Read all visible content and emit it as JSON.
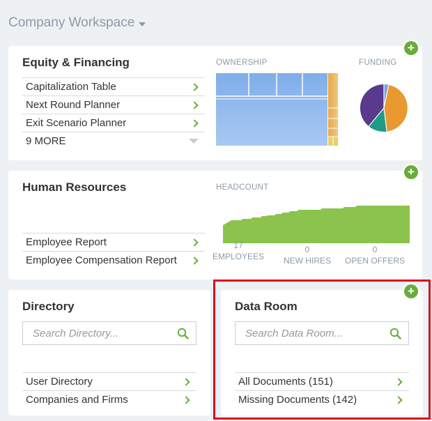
{
  "workspace": {
    "title": "Company Workspace"
  },
  "equity": {
    "title": "Equity & Financing",
    "items": [
      {
        "label": "Capitalization Table"
      },
      {
        "label": "Next Round Planner"
      },
      {
        "label": "Exit Scenario Planner"
      }
    ],
    "more_label": "9 MORE",
    "ownership_label": "OWNERSHIP",
    "funding_label": "FUNDING"
  },
  "hr": {
    "title": "Human Resources",
    "headcount_label": "HEADCOUNT",
    "items": [
      {
        "label": "Employee Report"
      },
      {
        "label": "Employee Compensation Report"
      }
    ],
    "stats": [
      {
        "value": "17",
        "label": "EMPLOYEES"
      },
      {
        "value": "0",
        "label": "NEW HIRES"
      },
      {
        "value": "0",
        "label": "OPEN OFFERS"
      }
    ]
  },
  "directory": {
    "title": "Directory",
    "search_placeholder": "Search Directory...",
    "items": [
      {
        "label": "User Directory"
      },
      {
        "label": "Companies and Firms"
      }
    ]
  },
  "dataroom": {
    "title": "Data Room",
    "search_placeholder": "Search Data Room...",
    "items": [
      {
        "label": "All Documents (151)"
      },
      {
        "label": "Missing Documents (142)"
      }
    ]
  },
  "colors": {
    "accent_green": "#6aac3a",
    "treemap_blue": "#8fb8ec",
    "treemap_orange": "#e8b35a",
    "pie": [
      "#5a3a8c",
      "#1f9b86",
      "#e89a30",
      "#7b9fe0"
    ],
    "highlight": "#d9101e"
  }
}
